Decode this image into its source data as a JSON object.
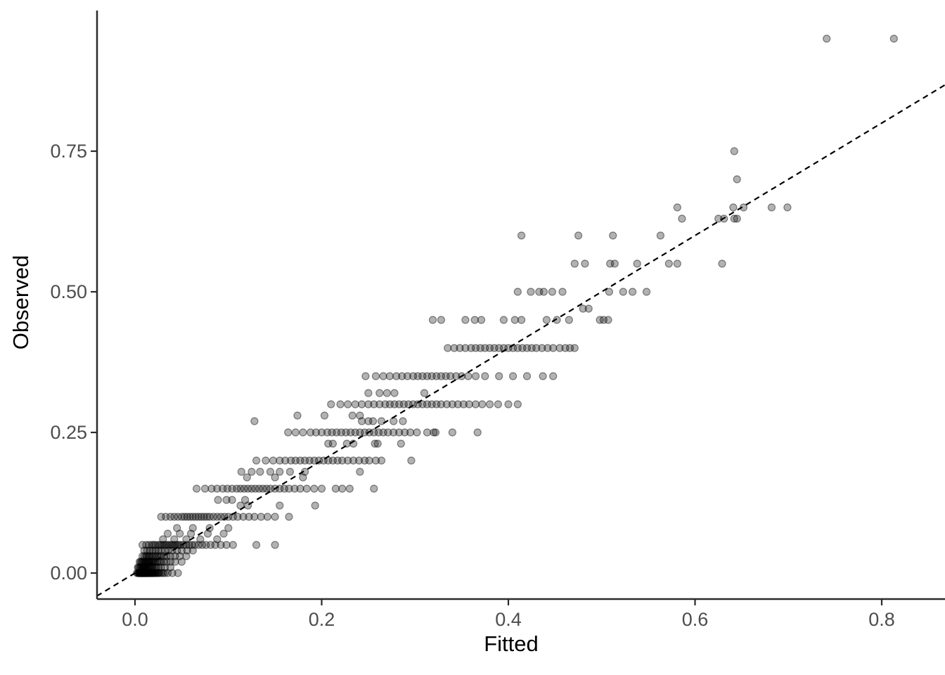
{
  "figure": {
    "xlabel": "Fitted",
    "ylabel": "Observed"
  },
  "chart_data": {
    "type": "scatter",
    "title": "",
    "xlabel": "Fitted",
    "ylabel": "Observed",
    "x_ticks": [
      0.0,
      0.2,
      0.4,
      0.6,
      0.8
    ],
    "x_tick_labels": [
      "0.0",
      "0.2",
      "0.4",
      "0.6",
      "0.8"
    ],
    "y_ticks": [
      0.0,
      0.25,
      0.5,
      0.75
    ],
    "y_tick_labels": [
      "0.00",
      "0.25",
      "0.50",
      "0.75"
    ],
    "xlim": [
      -0.041,
      0.868
    ],
    "ylim": [
      -0.046,
      1.0
    ],
    "grid": false,
    "legend": "none",
    "reference_line": {
      "type": "identity y=x",
      "style": "dashed",
      "color": "#000000"
    },
    "point_style": {
      "color": "#000000",
      "fill_opacity": 0.3,
      "stroke_opacity": 0.45,
      "radius_px": 5
    },
    "colors": {
      "tick_label": "#4d4d4d",
      "axis": "#2b2b2b",
      "axis_title": "#000000",
      "background": "#ffffff"
    },
    "bands": [
      {
        "observed": 0.0,
        "fitted": [
          0.002,
          0.003,
          0.004,
          0.004,
          0.005,
          0.005,
          0.005,
          0.006,
          0.006,
          0.006,
          0.007,
          0.007,
          0.007,
          0.007,
          0.008,
          0.008,
          0.008,
          0.008,
          0.009,
          0.009,
          0.009,
          0.01,
          0.01,
          0.01,
          0.01,
          0.011,
          0.011,
          0.011,
          0.012,
          0.012,
          0.012,
          0.013,
          0.013,
          0.013,
          0.014,
          0.014,
          0.015,
          0.015,
          0.015,
          0.016,
          0.016,
          0.017,
          0.017,
          0.018,
          0.018,
          0.019,
          0.02,
          0.02,
          0.021,
          0.022,
          0.023,
          0.024,
          0.025,
          0.026,
          0.028,
          0.03,
          0.032,
          0.035,
          0.04,
          0.046
        ]
      },
      {
        "observed": 0.01,
        "fitted": [
          0.003,
          0.004,
          0.005,
          0.006,
          0.007,
          0.008,
          0.008,
          0.009,
          0.01,
          0.01,
          0.011,
          0.012,
          0.013,
          0.014,
          0.015,
          0.016,
          0.017,
          0.018,
          0.019,
          0.021,
          0.023,
          0.025,
          0.028,
          0.032,
          0.038
        ]
      },
      {
        "observed": 0.02,
        "fitted": [
          0.005,
          0.006,
          0.007,
          0.008,
          0.009,
          0.01,
          0.011,
          0.012,
          0.013,
          0.014,
          0.015,
          0.016,
          0.017,
          0.018,
          0.019,
          0.02,
          0.022,
          0.024,
          0.026,
          0.028,
          0.031,
          0.034,
          0.038,
          0.043,
          0.05
        ]
      },
      {
        "observed": 0.03,
        "fitted": [
          0.008,
          0.01,
          0.012,
          0.013,
          0.015,
          0.016,
          0.018,
          0.02,
          0.022,
          0.024,
          0.026,
          0.028,
          0.031,
          0.034,
          0.038,
          0.043,
          0.048,
          0.055
        ]
      },
      {
        "observed": 0.04,
        "fitted": [
          0.01,
          0.013,
          0.016,
          0.019,
          0.022,
          0.025,
          0.028,
          0.032,
          0.036,
          0.04,
          0.045,
          0.05,
          0.056,
          0.062
        ]
      },
      {
        "observed": 0.05,
        "fitted": [
          0.008,
          0.012,
          0.015,
          0.018,
          0.02,
          0.022,
          0.025,
          0.027,
          0.029,
          0.031,
          0.033,
          0.035,
          0.037,
          0.039,
          0.041,
          0.043,
          0.045,
          0.047,
          0.049,
          0.052,
          0.055,
          0.058,
          0.061,
          0.064,
          0.068,
          0.072,
          0.076,
          0.081,
          0.086,
          0.092,
          0.098,
          0.105,
          0.13,
          0.15
        ]
      },
      {
        "observed": 0.06,
        "fitted": [
          0.03,
          0.042,
          0.055,
          0.07,
          0.088
        ]
      },
      {
        "observed": 0.07,
        "fitted": [
          0.035,
          0.048,
          0.06,
          0.078,
          0.095
        ]
      },
      {
        "observed": 0.08,
        "fitted": [
          0.045,
          0.062,
          0.08,
          0.1
        ]
      },
      {
        "observed": 0.1,
        "fitted": [
          0.028,
          0.033,
          0.038,
          0.042,
          0.046,
          0.05,
          0.053,
          0.056,
          0.059,
          0.062,
          0.065,
          0.068,
          0.071,
          0.074,
          0.077,
          0.08,
          0.084,
          0.088,
          0.092,
          0.096,
          0.1,
          0.105,
          0.11,
          0.116,
          0.122,
          0.128,
          0.135,
          0.142,
          0.15,
          0.165
        ]
      },
      {
        "observed": 0.12,
        "fitted": [
          0.113,
          0.121,
          0.155,
          0.193
        ]
      },
      {
        "observed": 0.13,
        "fitted": [
          0.089,
          0.098,
          0.104,
          0.118
        ]
      },
      {
        "observed": 0.15,
        "fitted": [
          0.066,
          0.075,
          0.082,
          0.088,
          0.094,
          0.099,
          0.104,
          0.109,
          0.113,
          0.117,
          0.121,
          0.125,
          0.129,
          0.133,
          0.137,
          0.141,
          0.145,
          0.15,
          0.155,
          0.16,
          0.165,
          0.171,
          0.177,
          0.184,
          0.192,
          0.2,
          0.215,
          0.222,
          0.23,
          0.256
        ]
      },
      {
        "observed": 0.17,
        "fitted": [
          0.12,
          0.15,
          0.18
        ]
      },
      {
        "observed": 0.18,
        "fitted": [
          0.114,
          0.125,
          0.134,
          0.145,
          0.155,
          0.166,
          0.182,
          0.241
        ]
      },
      {
        "observed": 0.2,
        "fitted": [
          0.13,
          0.14,
          0.148,
          0.155,
          0.161,
          0.167,
          0.172,
          0.177,
          0.182,
          0.187,
          0.192,
          0.197,
          0.202,
          0.207,
          0.212,
          0.217,
          0.222,
          0.228,
          0.234,
          0.24,
          0.246,
          0.251,
          0.258,
          0.264,
          0.296
        ]
      },
      {
        "observed": 0.23,
        "fitted": [
          0.207,
          0.212,
          0.227,
          0.234,
          0.257,
          0.26,
          0.285
        ]
      },
      {
        "observed": 0.25,
        "fitted": [
          0.164,
          0.172,
          0.18,
          0.188,
          0.194,
          0.2,
          0.206,
          0.211,
          0.216,
          0.221,
          0.226,
          0.231,
          0.236,
          0.241,
          0.246,
          0.251,
          0.256,
          0.261,
          0.266,
          0.271,
          0.277,
          0.283,
          0.289,
          0.295,
          0.302,
          0.313,
          0.32,
          0.322,
          0.34,
          0.367
        ]
      },
      {
        "observed": 0.27,
        "fitted": [
          0.128,
          0.243,
          0.25,
          0.255,
          0.264,
          0.277,
          0.287
        ]
      },
      {
        "observed": 0.28,
        "fitted": [
          0.174,
          0.203,
          0.233,
          0.241
        ]
      },
      {
        "observed": 0.3,
        "fitted": [
          0.21,
          0.22,
          0.228,
          0.236,
          0.243,
          0.25,
          0.256,
          0.262,
          0.268,
          0.273,
          0.278,
          0.283,
          0.288,
          0.293,
          0.298,
          0.303,
          0.308,
          0.313,
          0.318,
          0.323,
          0.328,
          0.334,
          0.34,
          0.346,
          0.352,
          0.358,
          0.365,
          0.372,
          0.38,
          0.389,
          0.4,
          0.41
        ]
      },
      {
        "observed": 0.32,
        "fitted": [
          0.25,
          0.262,
          0.27,
          0.278,
          0.31
        ]
      },
      {
        "observed": 0.35,
        "fitted": [
          0.247,
          0.258,
          0.266,
          0.273,
          0.28,
          0.286,
          0.292,
          0.298,
          0.303,
          0.308,
          0.313,
          0.318,
          0.323,
          0.328,
          0.333,
          0.338,
          0.344,
          0.35,
          0.357,
          0.365,
          0.375,
          0.39,
          0.405,
          0.42,
          0.437,
          0.448
        ]
      },
      {
        "observed": 0.4,
        "fitted": [
          0.335,
          0.342,
          0.348,
          0.354,
          0.36,
          0.365,
          0.37,
          0.375,
          0.38,
          0.385,
          0.39,
          0.395,
          0.4,
          0.405,
          0.41,
          0.415,
          0.42,
          0.425,
          0.43,
          0.436,
          0.442,
          0.448,
          0.455,
          0.461,
          0.466,
          0.471
        ]
      },
      {
        "observed": 0.45,
        "fitted": [
          0.319,
          0.328,
          0.354,
          0.364,
          0.371,
          0.395,
          0.407,
          0.414,
          0.441,
          0.452,
          0.465,
          0.498,
          0.502,
          0.507
        ]
      },
      {
        "observed": 0.47,
        "fitted": [
          0.48,
          0.486
        ]
      },
      {
        "observed": 0.5,
        "fitted": [
          0.41,
          0.424,
          0.433,
          0.438,
          0.447,
          0.458,
          0.508,
          0.523,
          0.533,
          0.548
        ]
      },
      {
        "observed": 0.55,
        "fitted": [
          0.471,
          0.482,
          0.509,
          0.514,
          0.538,
          0.572,
          0.581,
          0.629
        ]
      },
      {
        "observed": 0.6,
        "fitted": [
          0.414,
          0.475,
          0.512,
          0.563
        ]
      },
      {
        "observed": 0.63,
        "fitted": [
          0.586,
          0.625,
          0.631,
          0.642,
          0.645
        ]
      },
      {
        "observed": 0.65,
        "fitted": [
          0.581,
          0.641,
          0.652,
          0.682,
          0.699
        ]
      },
      {
        "observed": 0.7,
        "fitted": [
          0.645
        ]
      },
      {
        "observed": 0.75,
        "fitted": [
          0.642
        ]
      },
      {
        "observed": 0.95,
        "fitted": [
          0.741,
          0.813
        ]
      }
    ]
  }
}
